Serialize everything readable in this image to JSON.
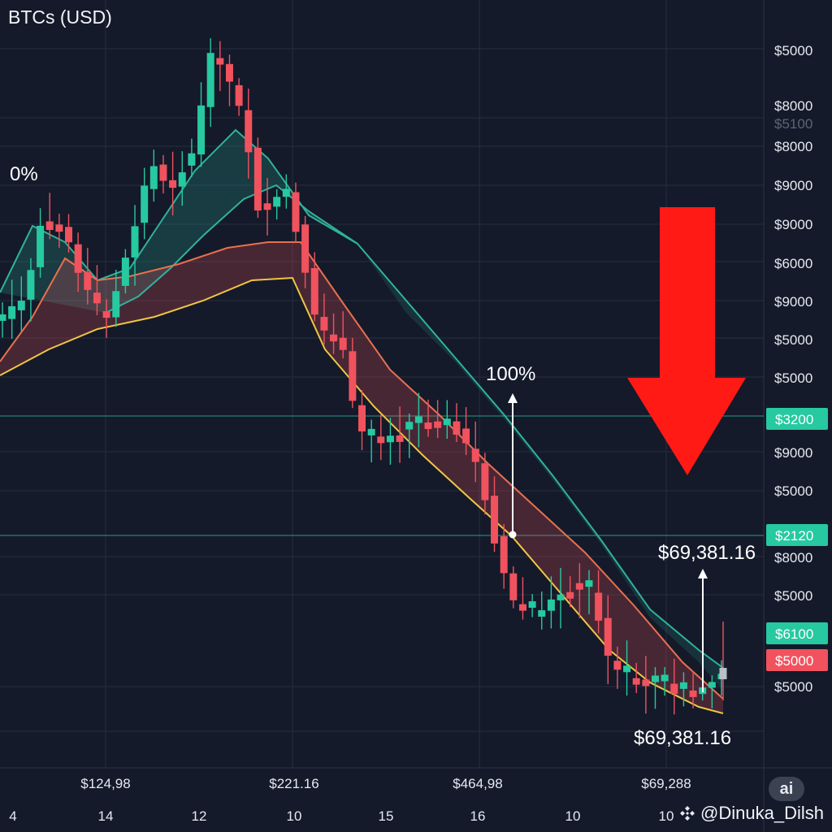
{
  "header": {
    "title": "BTCs (USD)"
  },
  "watermark": {
    "text": "@Dinuka_Dilsh",
    "badge": "ai",
    "icon": "binance-logo-icon"
  },
  "colors": {
    "background": "#141a2a",
    "bull": "#26c9a0",
    "bear": "#f0525e",
    "ema_teal": "#2fb39a",
    "ema_orange": "#e8704e",
    "ema_yellow": "#f2c641",
    "arrow": "#ff1a16",
    "grid": "#262d3d"
  },
  "chart_data": {
    "type": "candlestick",
    "title": "BTCs (USD)",
    "price_axis_labels": [
      "$5000",
      "$8000",
      "$5100",
      "$8000",
      "$9000",
      "$9000",
      "$6000",
      "$9000",
      "$5000",
      "$5000",
      "$9000",
      "$5000",
      "$8000",
      "$5000",
      "$5000"
    ],
    "price_tags": [
      {
        "text": "$3200",
        "color": "#26c9a0"
      },
      {
        "text": "$2120",
        "color": "#26c9a0"
      },
      {
        "text": "$6100",
        "color": "#26c9a0"
      },
      {
        "text": "$5000",
        "color": "#f0525e"
      }
    ],
    "x_value_labels": [
      "$124,98",
      "$221.16",
      "$464,98",
      "$69,288"
    ],
    "x_tick_labels": [
      "4",
      "14",
      "12",
      "10",
      "15",
      "16",
      "10",
      "10"
    ],
    "annotations": [
      "0%",
      "100%",
      "$69,381.16",
      "$69,381.16"
    ],
    "trend": "down",
    "series": [
      {
        "type": "candles",
        "count": 77
      },
      {
        "type": "ema"
      },
      {
        "type": "ema"
      },
      {
        "type": "ema"
      }
    ],
    "horizontal_lines": 2,
    "grid": true
  }
}
